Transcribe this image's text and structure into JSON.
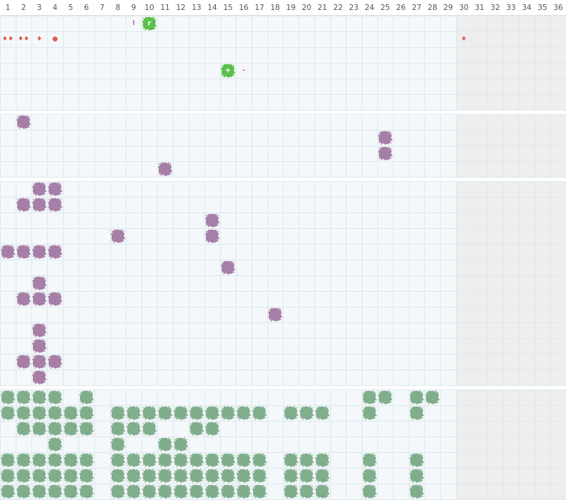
{
  "columns": [
    "1",
    "2",
    "3",
    "4",
    "5",
    "6",
    "7",
    "8",
    "9",
    "10",
    "11",
    "12",
    "13",
    "14",
    "15",
    "16",
    "17",
    "18",
    "19",
    "20",
    "21",
    "22",
    "23",
    "24",
    "25",
    "26",
    "27",
    "28",
    "29",
    "30",
    "31",
    "32",
    "33",
    "34",
    "35",
    "36"
  ],
  "shaded_from": 30,
  "sections": [
    {
      "rows": 6,
      "marks": [
        {
          "row": 0,
          "col": 9,
          "text": "I",
          "color": "#a07a9f"
        },
        {
          "row": 0,
          "col": 10,
          "blob": "#5cbf4a",
          "text": "r",
          "color": "#ffffff"
        },
        {
          "row": 1,
          "col": 1,
          "text": "♦♦",
          "color": "#e05a4e"
        },
        {
          "row": 1,
          "col": 2,
          "text": "♦♦",
          "color": "#e05a4e"
        },
        {
          "row": 1,
          "col": 3,
          "text": "♦",
          "color": "#e05a4e"
        },
        {
          "row": 1,
          "col": 4,
          "text": "●",
          "color": "#e05a4e"
        },
        {
          "row": 1,
          "col": 30,
          "text": "♦",
          "color": "#e05a4e"
        },
        {
          "row": 3,
          "col": 15,
          "blob": "#5cbf4a",
          "text": "+",
          "color": "#ffffff"
        },
        {
          "row": 3,
          "col": 16,
          "text": "–",
          "color": "#e05a4e"
        }
      ]
    },
    {
      "rows": 4,
      "color": "#a67ea6",
      "cells": [
        [
          2
        ],
        [
          25
        ],
        [
          25
        ],
        [
          11
        ]
      ]
    },
    {
      "rows": 13,
      "color": "#a67ea6",
      "cells": [
        [
          3,
          4
        ],
        [
          2,
          3,
          4
        ],
        [
          14
        ],
        [
          8,
          14
        ],
        [
          1,
          2,
          3,
          4
        ],
        [
          15
        ],
        [
          3
        ],
        [
          2,
          3,
          4
        ],
        [
          18
        ],
        [
          3
        ],
        [
          3
        ],
        [
          2,
          3,
          4
        ],
        [
          3
        ]
      ]
    },
    {
      "rows": 7,
      "color": "#7fae8c",
      "cells": [
        [
          1,
          2,
          3,
          4,
          6,
          24,
          25,
          27,
          28
        ],
        [
          1,
          2,
          3,
          4,
          5,
          6,
          8,
          9,
          10,
          11,
          12,
          13,
          14,
          15,
          16,
          17,
          19,
          20,
          21,
          24,
          27
        ],
        [
          2,
          3,
          4,
          5,
          6,
          8,
          9,
          10,
          13,
          14
        ],
        [
          4,
          8,
          11,
          12
        ],
        [
          1,
          2,
          3,
          4,
          5,
          6,
          8,
          9,
          10,
          11,
          12,
          13,
          14,
          15,
          16,
          17,
          19,
          20,
          21,
          24,
          27
        ],
        [
          1,
          2,
          3,
          4,
          5,
          6,
          8,
          9,
          10,
          11,
          12,
          13,
          14,
          15,
          16,
          17,
          19,
          20,
          21,
          24,
          27
        ],
        [
          1,
          2,
          3,
          4,
          5,
          6,
          8,
          9,
          10,
          11,
          12,
          13,
          14,
          15,
          16,
          17,
          19,
          20,
          21,
          24,
          27
        ]
      ]
    }
  ]
}
